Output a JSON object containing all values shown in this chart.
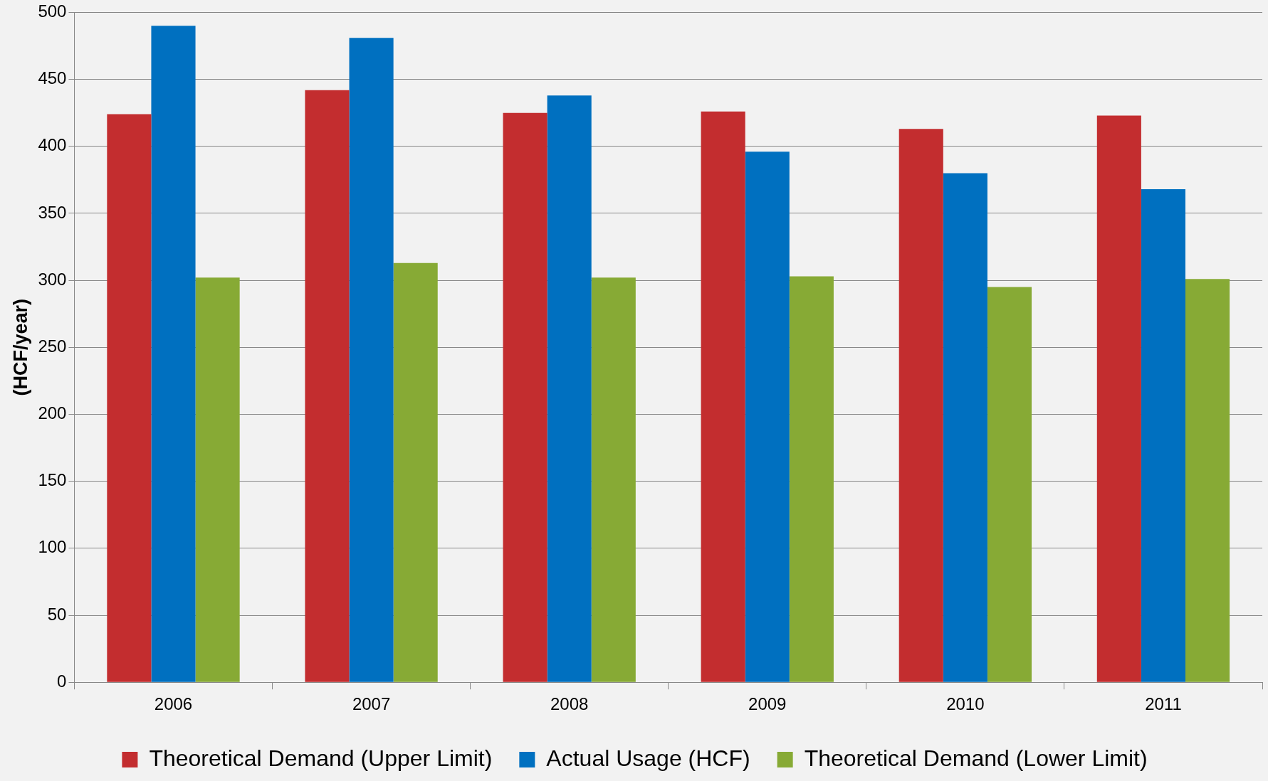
{
  "chart_data": {
    "type": "bar",
    "ylabel": "(HCF/year)",
    "categories": [
      "2006",
      "2007",
      "2008",
      "2009",
      "2010",
      "2011"
    ],
    "series": [
      {
        "name": "Theoretical Demand (Upper Limit)",
        "color": "#c32d2f",
        "values": [
          424,
          442,
          425,
          426,
          413,
          423
        ]
      },
      {
        "name": "Actual Usage (HCF)",
        "color": "#0070c0",
        "values": [
          490,
          481,
          438,
          396,
          380,
          368
        ]
      },
      {
        "name": "Theoretical Demand (Lower Limit)",
        "color": "#87aa35",
        "values": [
          302,
          313,
          302,
          303,
          295,
          301
        ]
      }
    ],
    "ylim": [
      0,
      500
    ],
    "yticks": [
      0,
      50,
      100,
      150,
      200,
      250,
      300,
      350,
      400,
      450,
      500
    ],
    "grid": "y",
    "legend": "bottom"
  }
}
